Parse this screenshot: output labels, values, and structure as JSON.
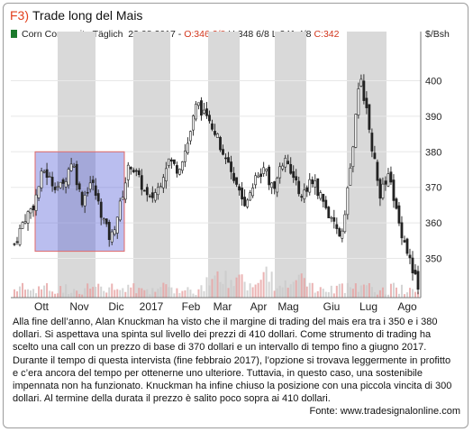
{
  "header": {
    "fig_label": "F3)",
    "title": "Trade long del Mais",
    "legend_text": "Corn Composite Täglich",
    "legend_date": "23.08.2017",
    "legend_open": "O:346 2/8",
    "legend_high": "H:348 6/8",
    "legend_low": "L:341 4/8",
    "legend_close": "C:342",
    "unit": "$/Bsh"
  },
  "chart_data": {
    "type": "candlestick",
    "months": [
      "Ott",
      "Nov",
      "Dic",
      "2017",
      "Feb",
      "Mar",
      "Apr",
      "Mag",
      "Giu",
      "Lug",
      "Ago"
    ],
    "y_ticks": [
      350,
      360,
      370,
      380,
      390,
      400
    ],
    "ylim": [
      342,
      408
    ],
    "shaded_months": [
      "Nov",
      "2017",
      "Mar",
      "Mag",
      "Lug"
    ],
    "trading_range": {
      "low": 352,
      "high": 380,
      "from": "Ott",
      "to": "Dic"
    },
    "legend_swatch_color": "#1b7a2c",
    "close_path": [
      {
        "m": "Ott",
        "v": 354
      },
      {
        "m": "Ott",
        "v": 361
      },
      {
        "m": "Ott",
        "v": 365
      },
      {
        "m": "Ott",
        "v": 375
      },
      {
        "m": "Ott",
        "v": 371
      },
      {
        "m": "Nov",
        "v": 370
      },
      {
        "m": "Nov",
        "v": 378
      },
      {
        "m": "Nov",
        "v": 366
      },
      {
        "m": "Nov",
        "v": 372
      },
      {
        "m": "Nov",
        "v": 363
      },
      {
        "m": "Dic",
        "v": 355
      },
      {
        "m": "Dic",
        "v": 365
      },
      {
        "m": "Dic",
        "v": 377
      },
      {
        "m": "Dic",
        "v": 372
      },
      {
        "m": "Dic",
        "v": 366
      },
      {
        "m": "2017",
        "v": 370
      },
      {
        "m": "2017",
        "v": 378
      },
      {
        "m": "2017",
        "v": 375
      },
      {
        "m": "Feb",
        "v": 382
      },
      {
        "m": "Feb",
        "v": 394
      },
      {
        "m": "Feb",
        "v": 389
      },
      {
        "m": "Mar",
        "v": 385
      },
      {
        "m": "Mar",
        "v": 378
      },
      {
        "m": "Mar",
        "v": 370
      },
      {
        "m": "Apr",
        "v": 366
      },
      {
        "m": "Apr",
        "v": 372
      },
      {
        "m": "Apr",
        "v": 375
      },
      {
        "m": "Apr",
        "v": 369
      },
      {
        "m": "Mag",
        "v": 378
      },
      {
        "m": "Mag",
        "v": 372
      },
      {
        "m": "Mag",
        "v": 368
      },
      {
        "m": "Giu",
        "v": 372
      },
      {
        "m": "Giu",
        "v": 367
      },
      {
        "m": "Giu",
        "v": 360
      },
      {
        "m": "Giu",
        "v": 356
      },
      {
        "m": "Lug",
        "v": 376
      },
      {
        "m": "Lug",
        "v": 402
      },
      {
        "m": "Lug",
        "v": 385
      },
      {
        "m": "Lug",
        "v": 368
      },
      {
        "m": "Ago",
        "v": 373
      },
      {
        "m": "Ago",
        "v": 360
      },
      {
        "m": "Ago",
        "v": 351
      },
      {
        "m": "Ago",
        "v": 342
      }
    ]
  },
  "caption": "Alla fine dell’anno, Alan Knuckman ha visto che il margine di trading del mais era tra i 350 e i 380 dollari. Si aspettava una spinta sul livello dei prezzi di 410 dollari. Come strumento di trading ha scelto una call con un prezzo di base di 370 dollari e un intervallo di tempo fino a giugno 2017. Durante il tempo di questa intervista (fine febbraio 2017), l’opzione si trovava leggermente in profitto e c’era ancora del tempo per ottenerne uno ulteriore. Tuttavia, in questo caso, una sostenibile impennata non ha funzionato. Knuckman ha infine chiuso la posizione con una piccola vincita di 300 dollari. Al termine della durata il prezzo è salito poco sopra ai 410 dollari.",
  "source": "Fonte: www.tradesignalonline.com"
}
